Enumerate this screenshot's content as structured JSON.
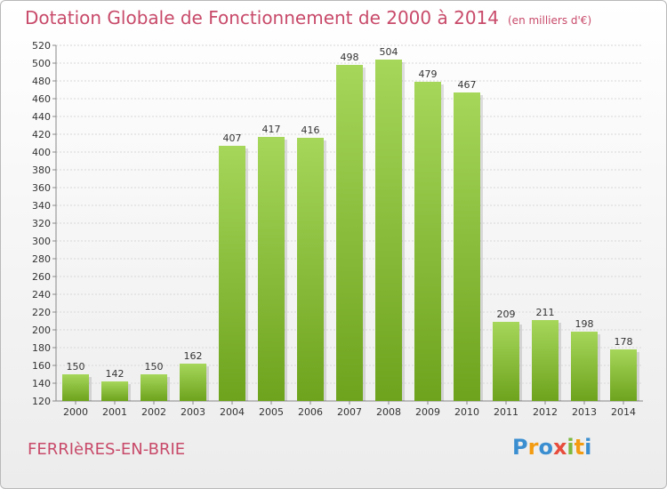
{
  "header": {
    "title": "Dotation Globale de Fonctionnement de 2000 à 2014",
    "unit": "(en milliers d'€)"
  },
  "footer": {
    "commune": "FERRIèRES-EN-BRIE",
    "logo": [
      "P",
      "r",
      "o",
      "x",
      "i",
      "t",
      "i"
    ]
  },
  "colors": {
    "title": "#c84a6a",
    "bar_top": "#a6d65a",
    "bar_bottom": "#6da31d",
    "grid": "#d8d8d8"
  },
  "chart_data": {
    "type": "bar",
    "categories": [
      "2000",
      "2001",
      "2002",
      "2003",
      "2004",
      "2005",
      "2006",
      "2007",
      "2008",
      "2009",
      "2010",
      "2011",
      "2012",
      "2013",
      "2014"
    ],
    "values": [
      150,
      142,
      150,
      162,
      407,
      417,
      416,
      498,
      504,
      479,
      467,
      209,
      211,
      198,
      178
    ],
    "ylim": [
      120,
      520
    ],
    "ytick_step": 20,
    "grid": true,
    "xlabel": "",
    "ylabel": ""
  }
}
